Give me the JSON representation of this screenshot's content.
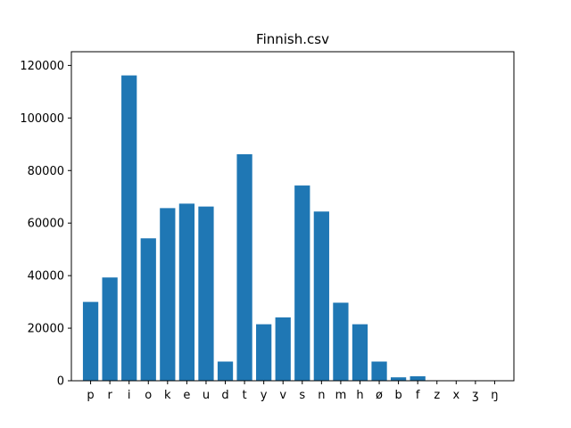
{
  "chart_data": {
    "type": "bar",
    "title": "Finnish.csv",
    "xlabel": "",
    "ylabel": "",
    "categories": [
      "p",
      "r",
      "i",
      "o",
      "k",
      "e",
      "u",
      "d",
      "t",
      "y",
      "v",
      "s",
      "n",
      "m",
      "h",
      "ø",
      "b",
      "f",
      "z",
      "x",
      "ʒ",
      "ŋ"
    ],
    "values": [
      30000,
      39300,
      116200,
      54200,
      65700,
      67400,
      66300,
      7300,
      86200,
      21500,
      24100,
      74300,
      64400,
      29700,
      21500,
      7300,
      1300,
      1700,
      0,
      0,
      0,
      0
    ],
    "ylim": [
      0,
      120000
    ],
    "yticks": [
      0,
      20000,
      40000,
      60000,
      80000,
      100000,
      120000
    ],
    "grid": false,
    "bar_color": "#1f77b4"
  }
}
